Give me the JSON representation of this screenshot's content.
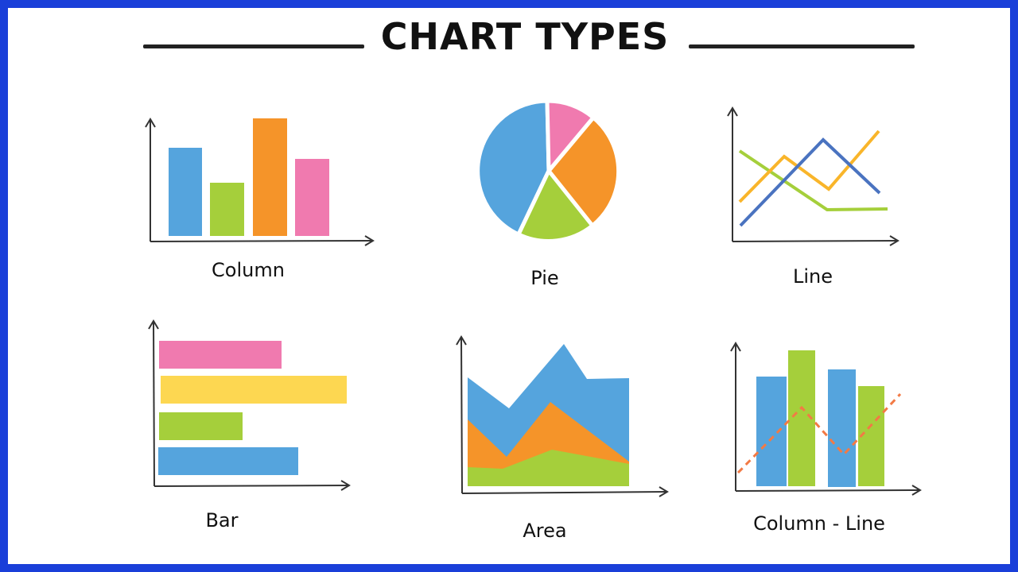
{
  "title": "CHART TYPES",
  "labels": {
    "column": "Column",
    "pie": "Pie",
    "line": "Line",
    "bar": "Bar",
    "area": "Area",
    "column_line": "Column - Line"
  },
  "colors": {
    "frame": "#1a3fd9",
    "blue": "#55a4dd",
    "green": "#a5cf3b",
    "orange": "#f59429",
    "pink": "#f07aaf",
    "yellow": "#fdd751",
    "red_dashed": "#f27a45",
    "line_blue": "#4a73c0",
    "axis": "#333333"
  },
  "icons": {
    "column": "column-chart-icon",
    "pie": "pie-chart-icon",
    "line": "line-chart-icon",
    "bar": "bar-chart-icon",
    "area": "area-chart-icon",
    "column_line": "column-line-chart-icon"
  }
}
